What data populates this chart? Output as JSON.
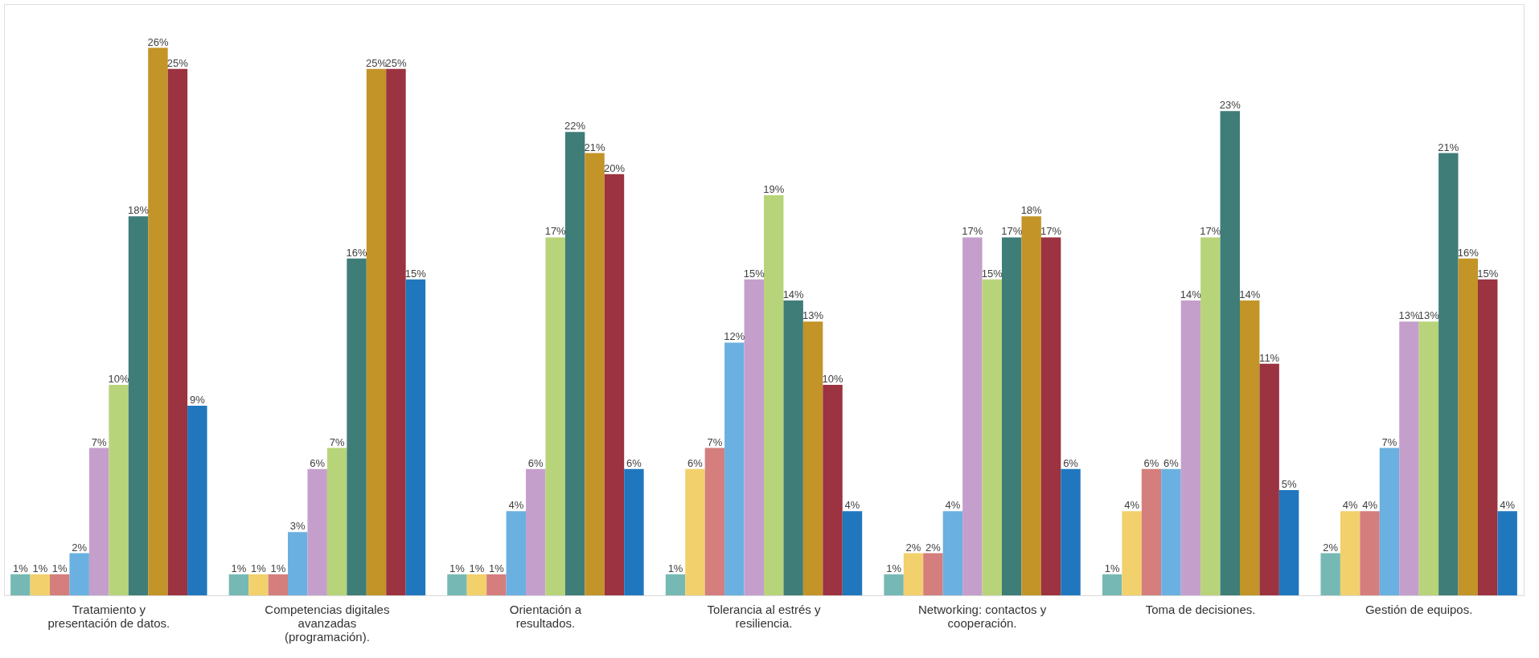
{
  "chart_data": {
    "type": "bar",
    "categories": [
      "Tratamiento y\npresentación de datos.",
      "Competencias digitales\navanzadas\n(programación).",
      "Orientación a\nresultados.",
      "Tolerancia al estrés y\nresiliencia.",
      "Networking: contactos y\ncooperación.",
      "Toma de decisiones.",
      "Gestión de equipos."
    ],
    "series": [
      {
        "color": "#76b9b4",
        "values": [
          1,
          1,
          1,
          1,
          1,
          1,
          2
        ],
        "value_labels": [
          "1%",
          "1%",
          "1%",
          "1%",
          "1%",
          "1%",
          "2%"
        ]
      },
      {
        "color": "#f2d06b",
        "values": [
          1,
          1,
          1,
          6,
          2,
          4,
          4
        ],
        "value_labels": [
          "1%",
          "1%",
          "1%",
          "6%",
          "2%",
          "4%",
          "4%"
        ]
      },
      {
        "color": "#d47e7e",
        "values": [
          1,
          1,
          1,
          7,
          2,
          6,
          4
        ],
        "value_labels": [
          "1%",
          "1%",
          "1%",
          "7%",
          "2%",
          "6%",
          "4%"
        ]
      },
      {
        "color": "#6ab0e0",
        "values": [
          2,
          3,
          4,
          12,
          4,
          6,
          7
        ],
        "value_labels": [
          "2%",
          "3%",
          "4%",
          "12%",
          "4%",
          "6%",
          "7%"
        ]
      },
      {
        "color": "#c59fcb",
        "values": [
          7,
          6,
          6,
          15,
          17,
          14,
          13
        ],
        "value_labels": [
          "7%",
          "6%",
          "6%",
          "15%",
          "17%",
          "14%",
          "13%"
        ]
      },
      {
        "color": "#b8d47a",
        "values": [
          10,
          7,
          17,
          19,
          15,
          17,
          13
        ],
        "value_labels": [
          "10%",
          "7%",
          "17%",
          "19%",
          "15%",
          "17%",
          "13%"
        ]
      },
      {
        "color": "#3f7d78",
        "values": [
          18,
          16,
          22,
          14,
          17,
          23,
          21
        ],
        "value_labels": [
          "18%",
          "16%",
          "22%",
          "14%",
          "17%",
          "23%",
          "21%"
        ]
      },
      {
        "color": "#c39428",
        "values": [
          26,
          25,
          21,
          13,
          18,
          14,
          16
        ],
        "value_labels": [
          "26%",
          "25%",
          "21%",
          "13%",
          "18%",
          "14%",
          "16%"
        ]
      },
      {
        "color": "#9b3340",
        "values": [
          25,
          25,
          20,
          10,
          17,
          11,
          15
        ],
        "value_labels": [
          "25%",
          "25%",
          "20%",
          "10%",
          "17%",
          "11%",
          "15%"
        ]
      },
      {
        "color": "#2077be",
        "values": [
          9,
          15,
          6,
          4,
          6,
          5,
          4
        ],
        "value_labels": [
          "9%",
          "15%",
          "6%",
          "4%",
          "6%",
          "5%",
          "4%"
        ]
      }
    ]
  }
}
